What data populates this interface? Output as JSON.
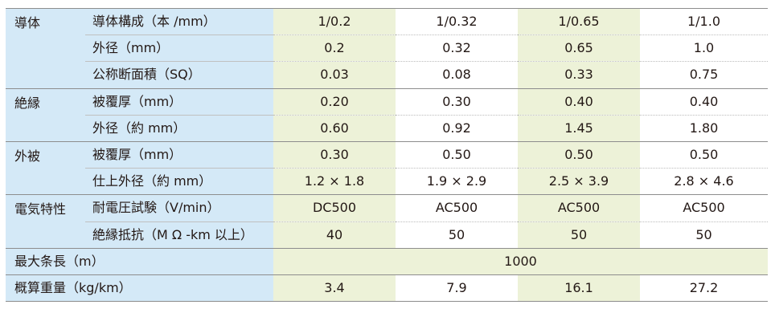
{
  "categories": {
    "conductor": "導体",
    "insulation": "絶縁",
    "sheath": "外被",
    "electrical": "電気特性",
    "max_length": "最大条長（m）",
    "weight": "概算重量（kg/km）"
  },
  "rows": [
    {
      "label": "導体構成（本 /mm）",
      "values": [
        "1/0.2",
        "1/0.32",
        "1/0.65",
        "1/1.0"
      ]
    },
    {
      "label": "外径（mm）",
      "values": [
        "0.2",
        "0.32",
        "0.65",
        "1.0"
      ]
    },
    {
      "label": "公称断面積（SQ）",
      "values": [
        "0.03",
        "0.08",
        "0.33",
        "0.75"
      ]
    },
    {
      "label": "被覆厚（mm）",
      "values": [
        "0.20",
        "0.30",
        "0.40",
        "0.40"
      ]
    },
    {
      "label": "外径（約 mm）",
      "values": [
        "0.60",
        "0.92",
        "1.45",
        "1.80"
      ]
    },
    {
      "label": "被覆厚（mm）",
      "values": [
        "0.30",
        "0.50",
        "0.50",
        "0.50"
      ]
    },
    {
      "label": "仕上外径（約 mm）",
      "values": [
        "1.2 × 1.8",
        "1.9 × 2.9",
        "2.5 × 3.9",
        "2.8 × 4.6"
      ]
    },
    {
      "label": "耐電圧試験（V/min）",
      "values": [
        "DC500",
        "AC500",
        "AC500",
        "AC500"
      ]
    },
    {
      "label": "絶縁抵抗（M Ω -km 以上）",
      "values": [
        "40",
        "50",
        "50",
        "50"
      ]
    }
  ],
  "max_length_value": "1000",
  "weight_values": [
    "3.4",
    "7.9",
    "16.1",
    "27.2"
  ]
}
